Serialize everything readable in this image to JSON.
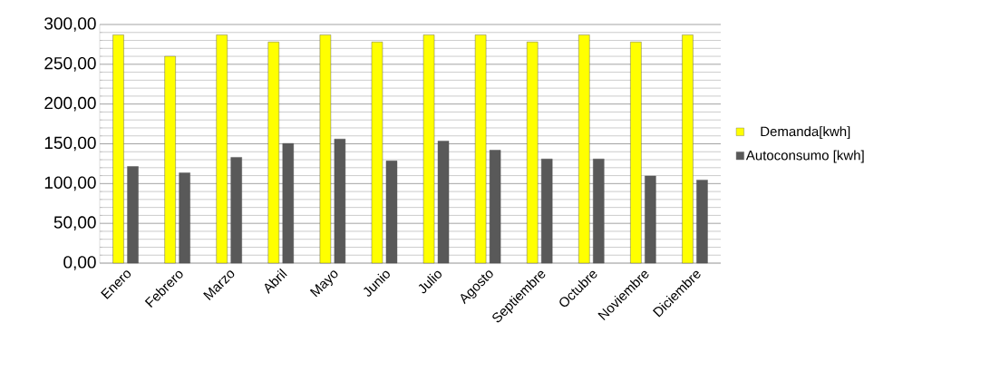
{
  "chart_data": {
    "type": "bar",
    "categories": [
      "Enero",
      "Febrero",
      "Marzo",
      "Abril",
      "Mayo",
      "Junio",
      "Julio",
      "Agosto",
      "Septiembre",
      "Octubre",
      "Noviembre",
      "Diciembre"
    ],
    "series": [
      {
        "name": "Demanda[kwh]",
        "color": "#ffff00",
        "values": [
          287,
          260,
          287,
          278,
          287,
          278,
          287,
          287,
          278,
          287,
          278,
          287
        ]
      },
      {
        "name": "Autoconsumo [kwh]",
        "color": "#595959",
        "values": [
          121.5,
          113.5,
          133,
          150.5,
          156,
          128.5,
          153.5,
          142,
          131,
          131,
          109.5,
          104.5
        ]
      }
    ],
    "ylim": [
      0,
      300
    ],
    "yticks": [
      {
        "value": 0,
        "label": "0,00"
      },
      {
        "value": 50,
        "label": "50,00"
      },
      {
        "value": 100,
        "label": "100,00"
      },
      {
        "value": 150,
        "label": "150,00"
      },
      {
        "value": 200,
        "label": "200,00"
      },
      {
        "value": 250,
        "label": "250,00"
      },
      {
        "value": 300,
        "label": "300,00"
      }
    ],
    "grid": "y",
    "legend": "right"
  }
}
